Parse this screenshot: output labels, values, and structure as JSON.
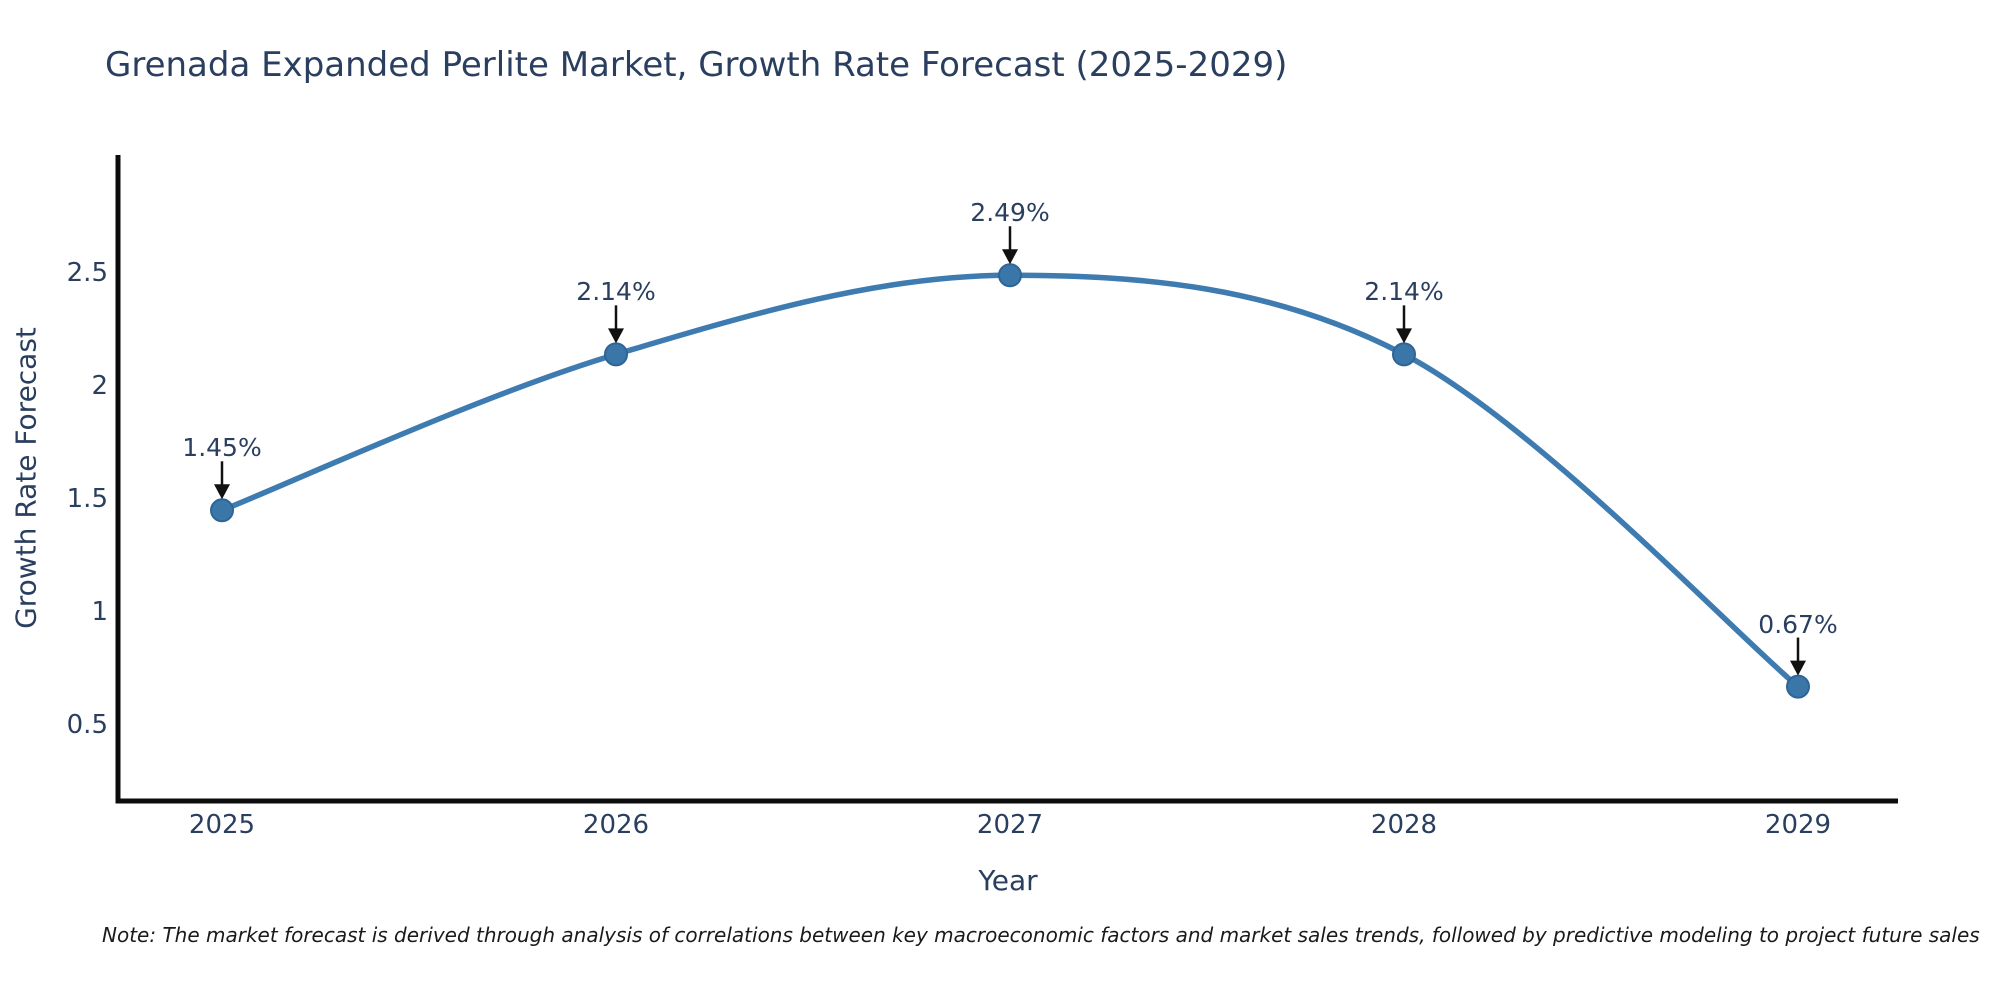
{
  "title": "Grenada Expanded Perlite Market, Growth Rate Forecast (2025-2029)",
  "note": "Note: The market forecast is derived through analysis of correlations between key macroeconomic factors and market sales trends, followed by predictive modeling to project future sales",
  "chart_data": {
    "type": "line",
    "line_shape": "spline",
    "title": "Grenada Expanded Perlite Market, Growth Rate Forecast (2025-2029)",
    "xlabel": "Year",
    "ylabel": "Growth Rate Forecast",
    "categories": [
      "2025",
      "2026",
      "2027",
      "2028",
      "2029"
    ],
    "values": [
      1.45,
      2.14,
      2.49,
      2.14,
      0.67
    ],
    "point_labels": [
      "1.45%",
      "2.14%",
      "2.49%",
      "2.14%",
      "0.67%"
    ],
    "yticks": [
      0.5,
      1,
      1.5,
      2,
      2.5
    ],
    "ytick_labels": [
      "0.5",
      "1",
      "1.5",
      "2",
      "2.5"
    ],
    "ylim": [
      0.16,
      3.02
    ],
    "grid": false,
    "legend": "none",
    "annotations_have_arrows": true,
    "colors": {
      "line": "#3e7bb0",
      "marker_fill": "#3a76a8",
      "marker_stroke": "#2f6496",
      "axis": "#0c0c0c",
      "arrow": "#111111",
      "text": "#2a3f5f",
      "note_text": "#1a1a1a",
      "background": "#ffffff"
    }
  }
}
